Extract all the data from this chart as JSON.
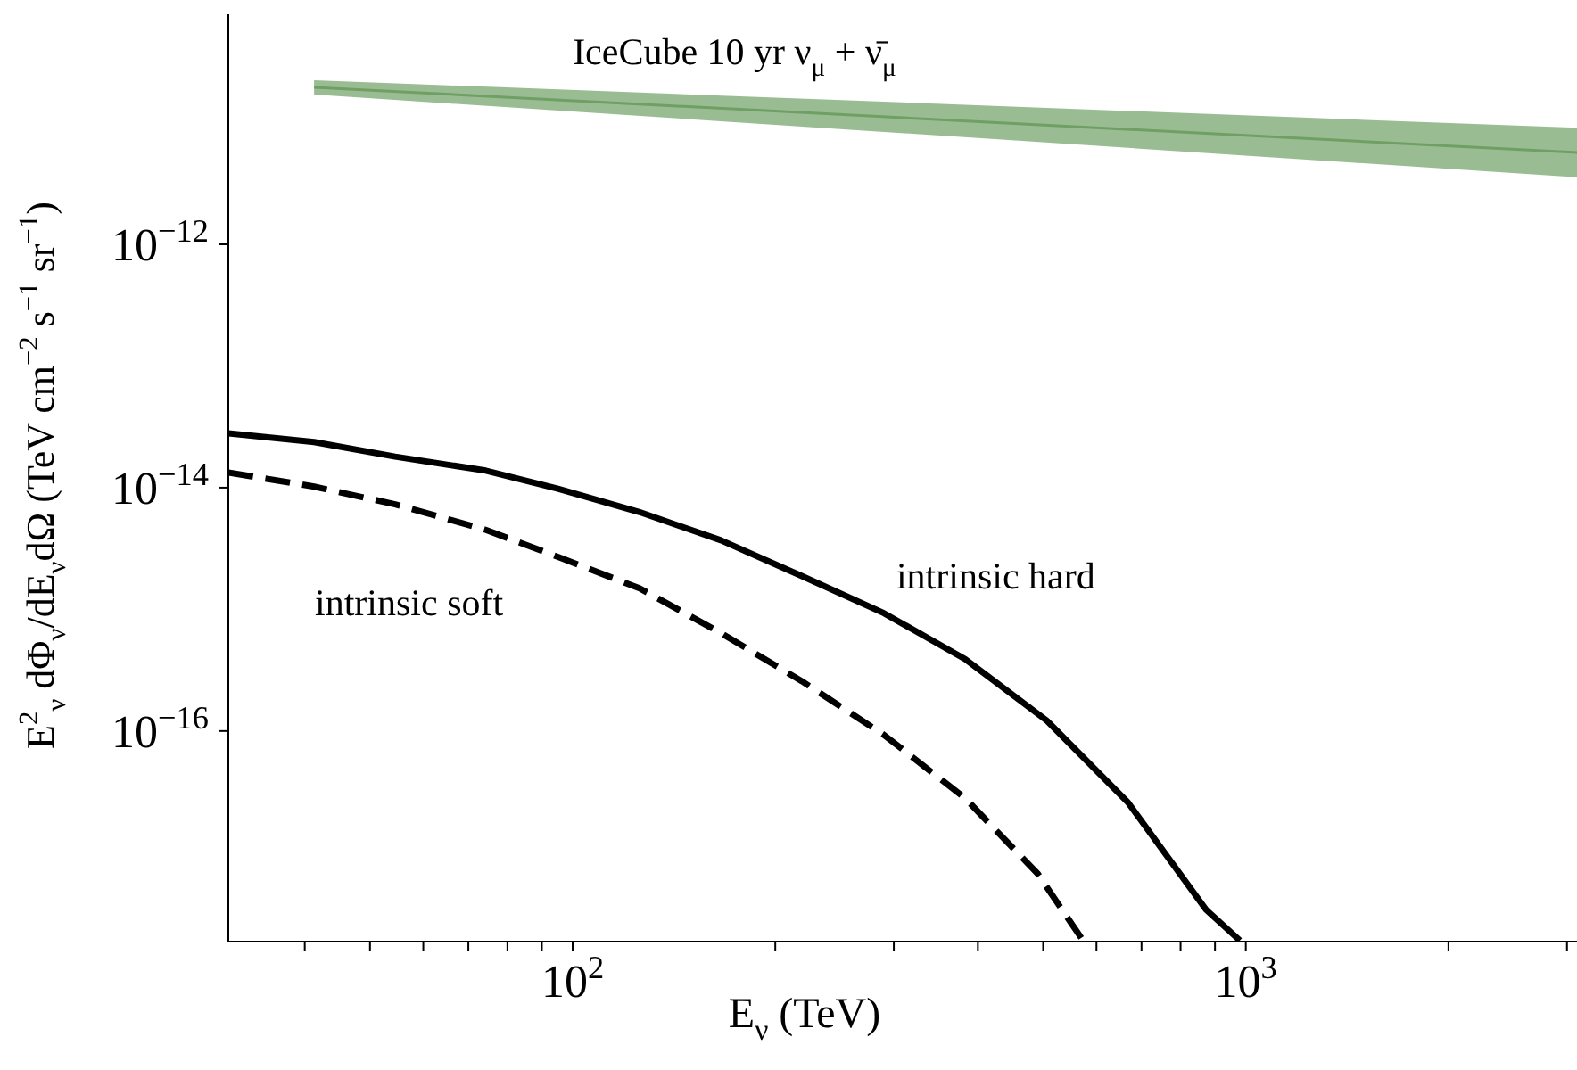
{
  "chart_data": {
    "type": "line",
    "xlabel": "E$_{ν}$ (TeV)",
    "ylabel": "E$^{2}$$_{ν}$ dΦ$_{ν}$/dE$_{ν}$dΩ (TeV cm$^{−2}$ s$^{−1}$ sr$^{−1}$)",
    "log": "xy",
    "xlim": [
      30.8,
      3300
    ],
    "ylim": [
      1.86e-18,
      8.6e-11
    ],
    "xticks": [
      {
        "value": 40,
        "label": null
      },
      {
        "value": 50,
        "label": null
      },
      {
        "value": 60,
        "label": null
      },
      {
        "value": 70,
        "label": null
      },
      {
        "value": 80,
        "label": null
      },
      {
        "value": 90,
        "label": null
      },
      {
        "value": 100,
        "label": "10$^{2}$"
      },
      {
        "value": 200,
        "label": null
      },
      {
        "value": 300,
        "label": null
      },
      {
        "value": 400,
        "label": null
      },
      {
        "value": 500,
        "label": null
      },
      {
        "value": 600,
        "label": null
      },
      {
        "value": 700,
        "label": null
      },
      {
        "value": 800,
        "label": null
      },
      {
        "value": 900,
        "label": null
      },
      {
        "value": 1000,
        "label": "10$^{3}$"
      },
      {
        "value": 2000,
        "label": null
      },
      {
        "value": 3000,
        "label": null
      }
    ],
    "yticks": [
      {
        "value": 1e-16,
        "label": "10$^{−16}$"
      },
      {
        "value": 1e-14,
        "label": "10$^{−14}$"
      },
      {
        "value": 1e-12,
        "label": "10$^{−12}$"
      }
    ],
    "series": [
      {
        "name": "IceCube 10 yr ν$_{μ}$ + ν̄$_{μ}$",
        "type": "line",
        "color": "#6f9f64",
        "x": [
          41.3,
          3300
        ],
        "values": [
          1.95e-11,
          5.58e-12
        ],
        "lower": [
          1.7e-11,
          3.48e-12
        ],
        "upper": [
          2.23e-11,
          8.95e-12
        ]
      },
      {
        "name": "intrinsic hard",
        "color": "#000000",
        "line_style": "solid",
        "x": [
          30.8,
          41.3,
          54.5,
          74.3,
          95.1,
          125.7,
          166,
          219,
          290,
          383,
          506,
          668,
          873,
          980
        ],
        "values": [
          2.8e-14,
          2.37e-14,
          1.8e-14,
          1.38e-14,
          9.8e-15,
          6.3e-15,
          3.7e-15,
          1.88e-15,
          9.3e-16,
          3.9e-16,
          1.22e-16,
          2.6e-17,
          3.4e-18,
          1.9e-18
        ]
      },
      {
        "name": "intrinsic soft",
        "color": "#000000",
        "line_style": "dashed",
        "x": [
          30.8,
          41.3,
          54.5,
          74.3,
          95.1,
          125.7,
          166,
          219,
          290,
          383,
          491,
          573
        ],
        "values": [
          1.33e-14,
          1.02e-14,
          7.3e-15,
          4.5e-15,
          2.7e-15,
          1.49e-15,
          6.4e-16,
          2.57e-16,
          9.3e-17,
          2.8e-17,
          6.7e-18,
          1.9e-18
        ]
      }
    ]
  }
}
